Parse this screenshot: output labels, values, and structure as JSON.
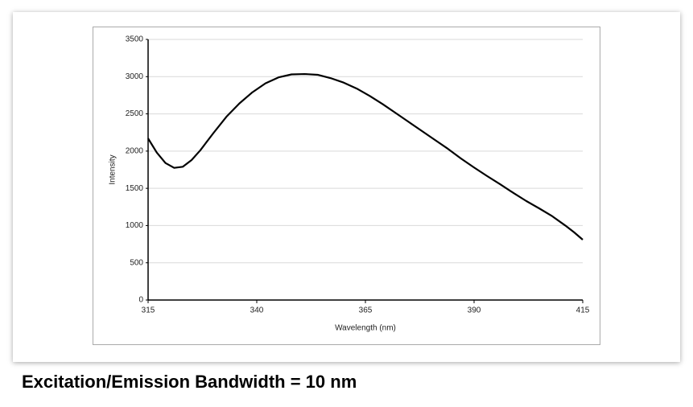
{
  "chart_data": {
    "type": "line",
    "x_label": "Wavelength (nm)",
    "y_label": "Intensity",
    "x": [
      315,
      317,
      319,
      321,
      323,
      325,
      327,
      330,
      333,
      336,
      339,
      342,
      345,
      348,
      351,
      354,
      357,
      360,
      363,
      366,
      369,
      372,
      375,
      378,
      381,
      384,
      387,
      390,
      393,
      396,
      399,
      402,
      405,
      408,
      411,
      413,
      415
    ],
    "series": [
      {
        "color": "#000000",
        "values": [
          2170,
          1980,
          1840,
          1775,
          1790,
          1880,
          2010,
          2240,
          2460,
          2640,
          2790,
          2910,
          2990,
          3030,
          3035,
          3025,
          2980,
          2920,
          2840,
          2740,
          2630,
          2510,
          2390,
          2270,
          2150,
          2030,
          1900,
          1780,
          1665,
          1555,
          1440,
          1330,
          1230,
          1125,
          1000,
          910,
          810
        ]
      }
    ],
    "xlim": [
      315,
      415
    ],
    "xticks": [
      315,
      340,
      365,
      390,
      415
    ],
    "ylim": [
      0,
      3500
    ],
    "yticks": [
      0,
      500,
      1000,
      1500,
      2000,
      2500,
      3000,
      3500
    ],
    "grid": true
  },
  "caption": "Excitation/Emission Bandwidth = 10 nm"
}
